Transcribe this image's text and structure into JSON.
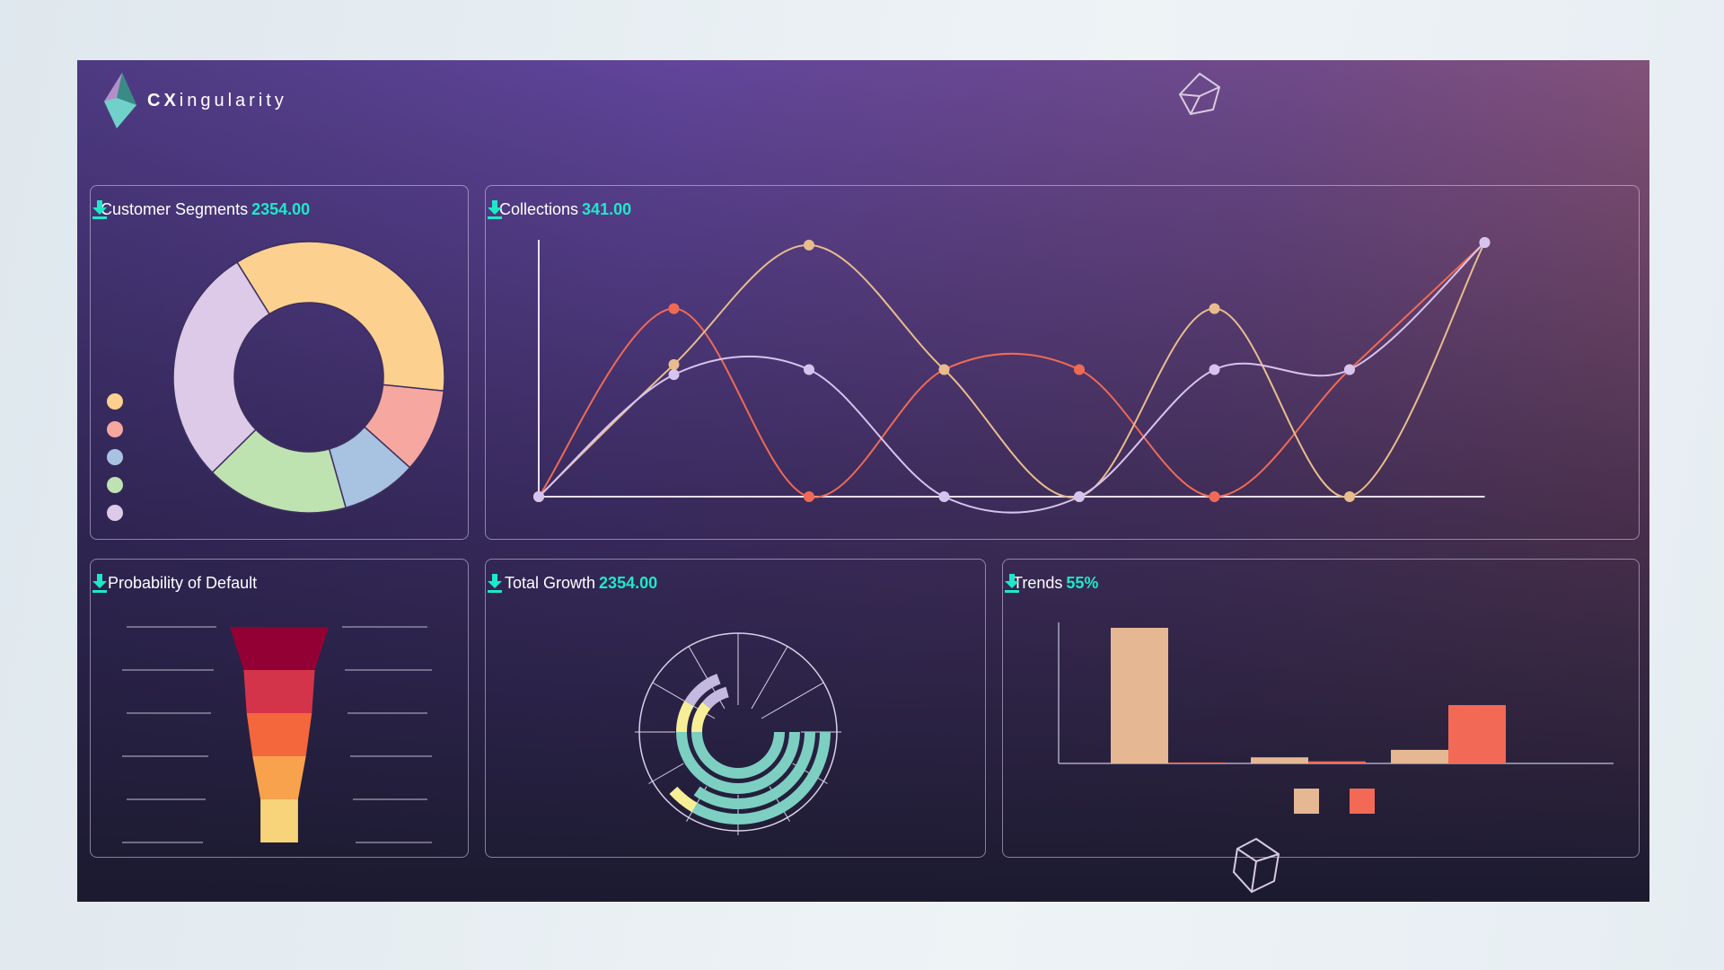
{
  "brand": {
    "name_bold": "CX",
    "name_rest": "ingularity"
  },
  "colors": {
    "accent": "#1de9c9",
    "peach": "#fcd08f",
    "salmon": "#f6a7a0",
    "blue": "#a8c2e1",
    "green": "#bfe2b1",
    "lavender": "#dccae8",
    "red": "#ef6a55",
    "tan": "#e8bd8d",
    "lilac": "#d6c4ee",
    "teal": "#7dcfc2",
    "yellow": "#f7ef98",
    "bar_tan": "#e5b792",
    "bar_red": "#f26a55"
  },
  "panels": {
    "segments": {
      "title": "Customer Segments",
      "value": "2354.00",
      "download_icon": "download-icon"
    },
    "collections": {
      "title": "Collections",
      "value": "341.00",
      "download_icon": "download-icon"
    },
    "default": {
      "title": "Probability of Default",
      "download_icon": "download-icon"
    },
    "growth": {
      "title": "Total Growth",
      "value": "2354.00",
      "download_icon": "download-icon"
    },
    "trends": {
      "title": "Trends",
      "value": "55%",
      "download_icon": "download-icon"
    }
  },
  "chart_data": [
    {
      "type": "pie",
      "variant": "donut",
      "values": [
        35.5,
        10,
        9,
        17,
        28.5
      ],
      "colors": [
        "#fcd08f",
        "#f6a7a0",
        "#a8c2e1",
        "#bfe2b1",
        "#dccae8"
      ],
      "legend": "left"
    },
    {
      "type": "line",
      "x": [
        0,
        1,
        2,
        3,
        4,
        5,
        6,
        7
      ],
      "ylim": [
        0,
        100
      ],
      "smooth": true,
      "series": [
        {
          "color": "#ef6a55",
          "values": [
            0,
            74,
            0,
            50,
            50,
            0,
            50,
            100
          ]
        },
        {
          "color": "#e8bd8d",
          "values": [
            0,
            52,
            99,
            50,
            0,
            74,
            0,
            100
          ]
        },
        {
          "color": "#d6c4ee",
          "values": [
            0,
            48,
            50,
            0,
            0,
            50,
            50,
            100
          ]
        }
      ]
    },
    {
      "type": "funnel",
      "values": [
        100,
        72,
        66,
        54,
        38
      ],
      "colors": [
        "#930034",
        "#d4344a",
        "#f4663c",
        "#f9a24d",
        "#f7d37a"
      ]
    },
    {
      "type": "radial-bar",
      "max": 360,
      "rings": [
        [
          {
            "v": 180,
            "c": "#7dcfc2"
          },
          {
            "v": 40,
            "c": "#f7ef98"
          },
          {
            "v": 35,
            "c": "#c4b9de"
          }
        ],
        [
          {
            "v": 180,
            "c": "#7dcfc2"
          },
          {
            "v": 30,
            "c": "#f7ef98"
          },
          {
            "v": 40,
            "c": "#c4b9de"
          }
        ],
        [
          {
            "v": 125,
            "c": "#7dcfc2"
          }
        ],
        [
          {
            "v": 120,
            "c": "#7dcfc2"
          },
          {
            "v": 18,
            "c": "#f7ef98"
          }
        ]
      ]
    },
    {
      "type": "bar",
      "categories": [
        "",
        "",
        ""
      ],
      "ylim": [
        0,
        100
      ],
      "series": [
        {
          "color": "#e5b792",
          "values": [
            100,
            4.5,
            10
          ]
        },
        {
          "color": "#f26a55",
          "values": [
            0.7,
            1.5,
            43
          ]
        }
      ],
      "legend": "bottom"
    }
  ]
}
